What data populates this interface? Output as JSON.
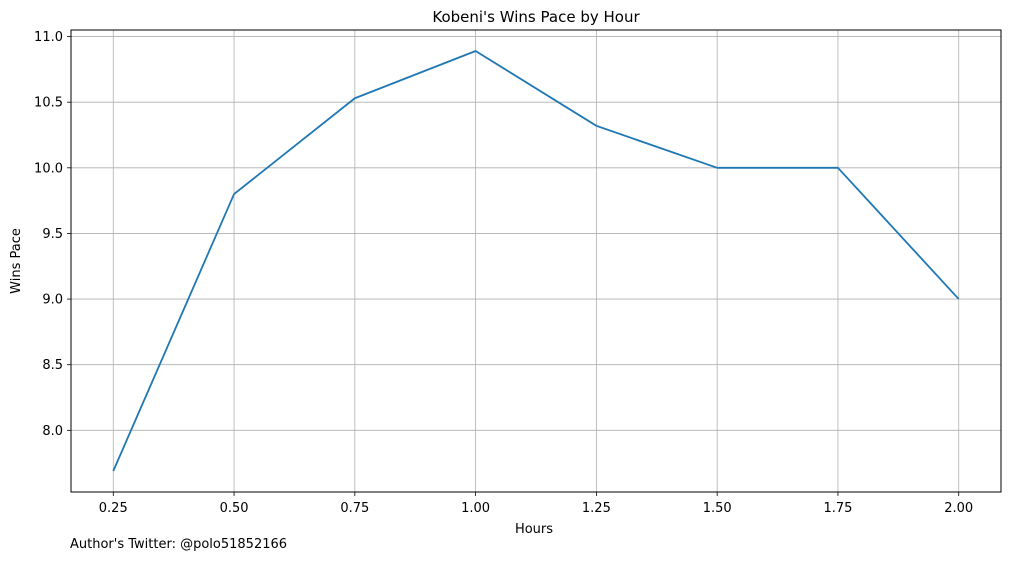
{
  "chart_data": {
    "type": "line",
    "title": "Kobeni's Wins Pace by Hour",
    "xlabel": "Hours",
    "ylabel": "Wins Pace",
    "x": [
      0.25,
      0.5,
      0.75,
      1.0,
      1.25,
      1.5,
      1.75,
      2.0
    ],
    "series": [
      {
        "values": [
          7.69,
          9.8,
          10.53,
          10.89,
          10.32,
          10.0,
          10.0,
          9.0
        ],
        "color": "#1f77b4"
      }
    ],
    "xticks": [
      "0.25",
      "0.50",
      "0.75",
      "1.00",
      "1.25",
      "1.50",
      "1.75",
      "2.00"
    ],
    "yticks": [
      "8.0",
      "8.5",
      "9.0",
      "9.5",
      "10.0",
      "10.5",
      "11.0"
    ],
    "xlim": [
      0.1625,
      2.0875
    ],
    "ylim": [
      7.53,
      11.05
    ],
    "grid": true,
    "legend": "none"
  },
  "footnote": "Author's Twitter: @polo51852166"
}
